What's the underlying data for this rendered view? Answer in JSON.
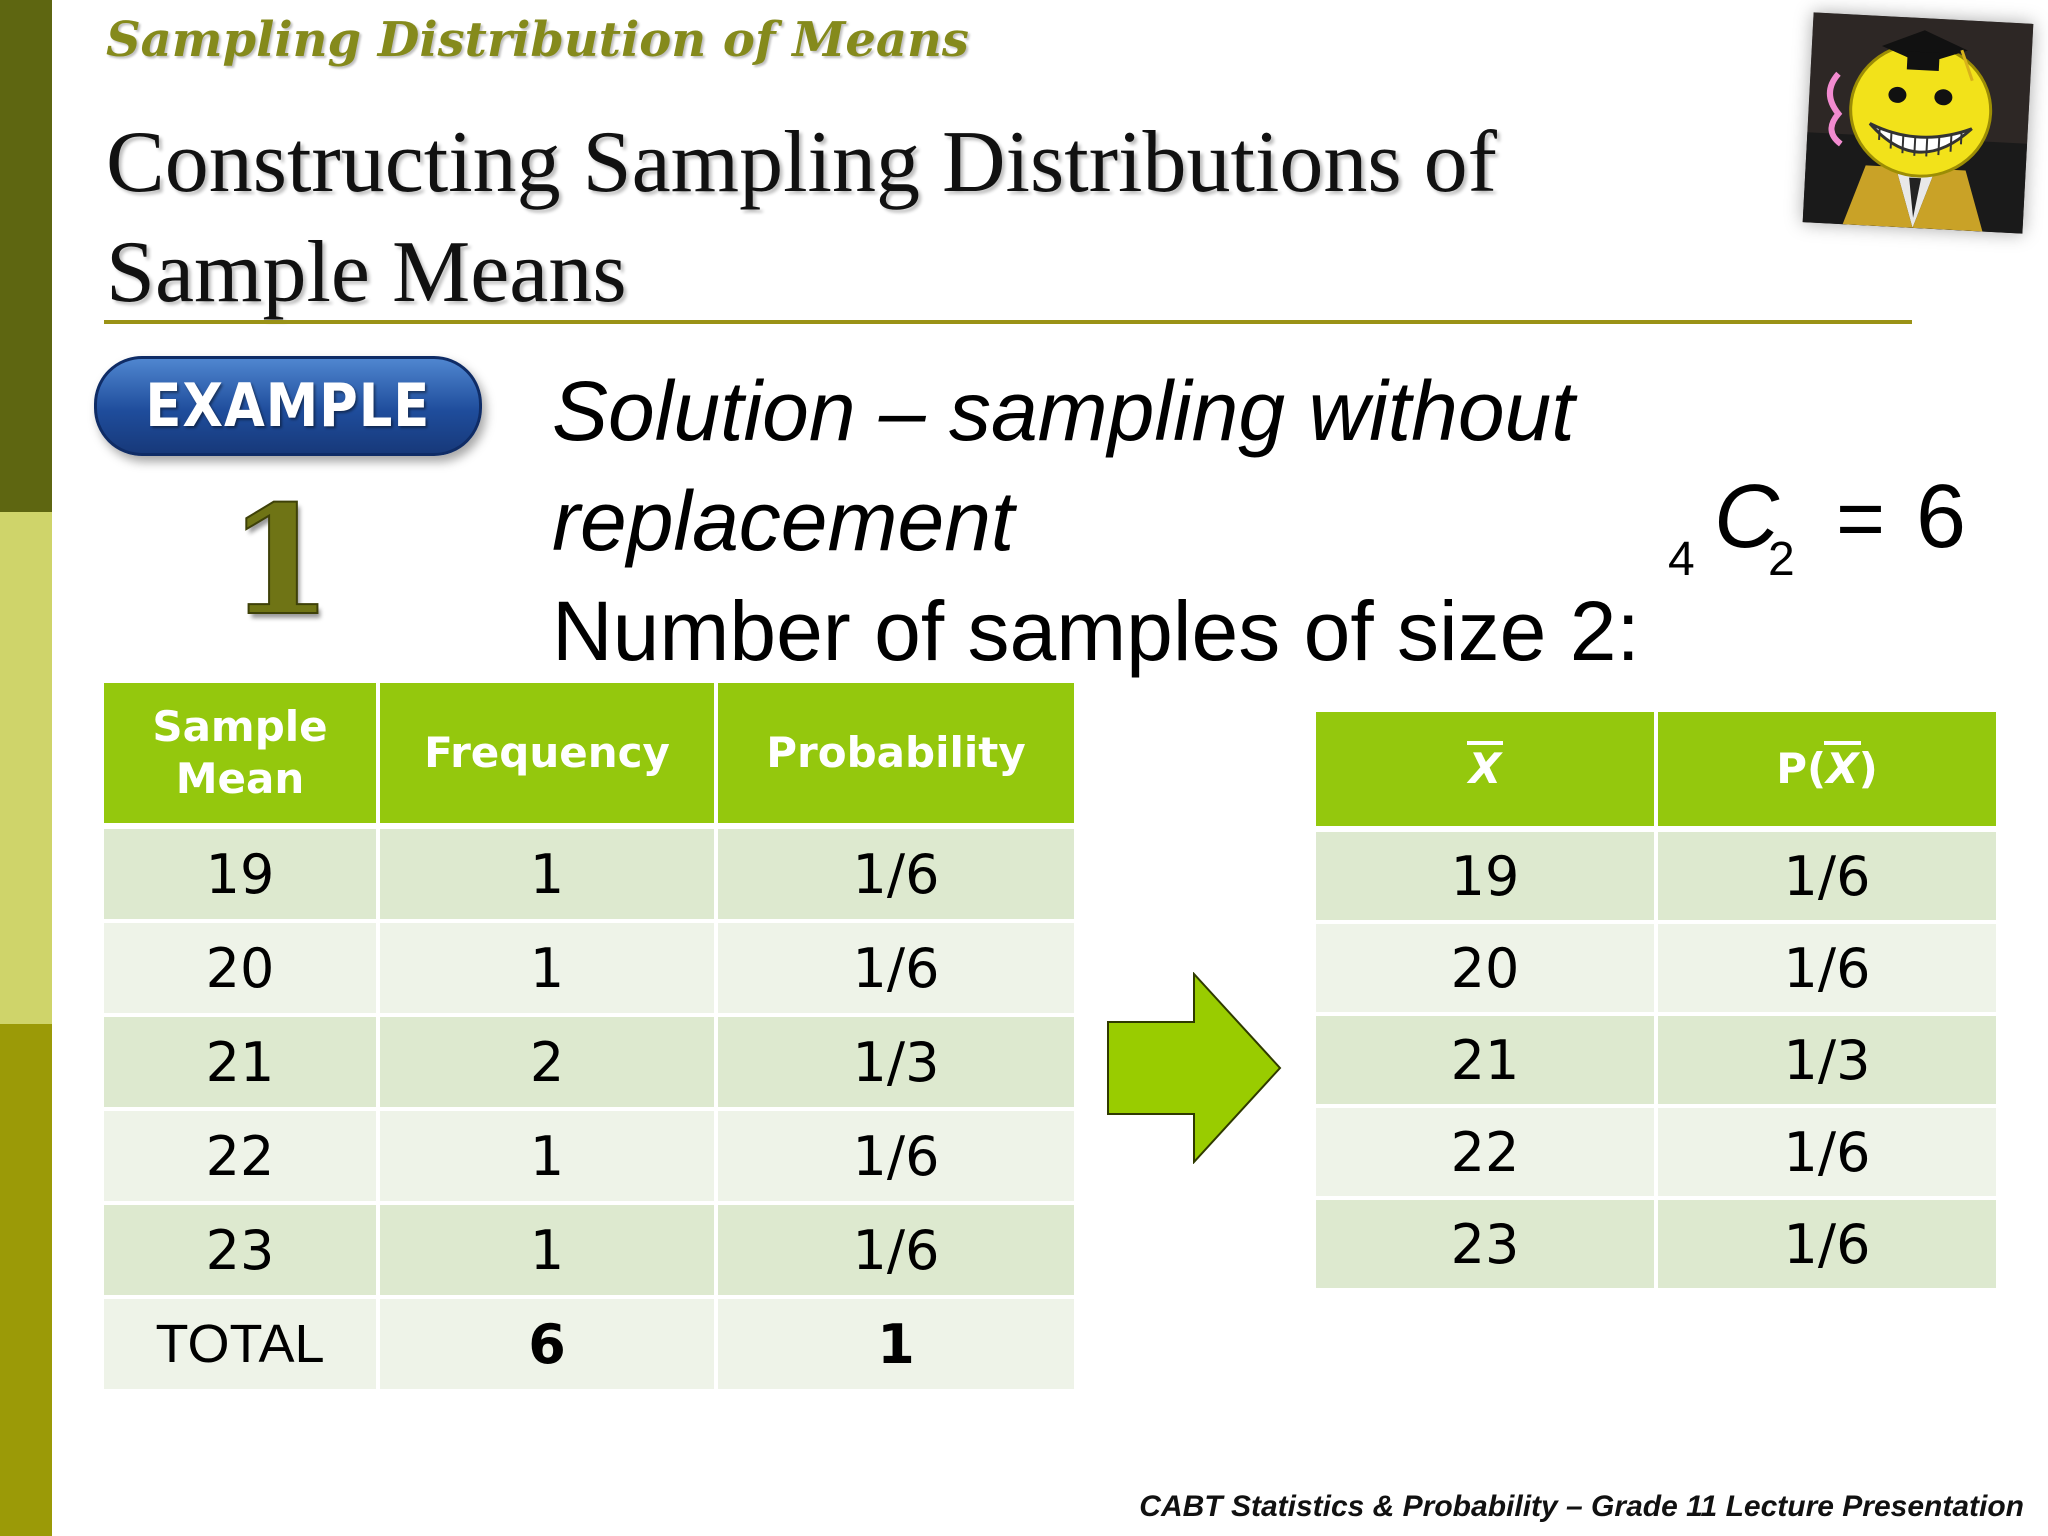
{
  "slide": {
    "subtitle": "Sampling Distribution of Means",
    "title_line1": "Constructing Sampling Distributions of",
    "title_line2": "Sample Means",
    "badge_label": "EXAMPLE",
    "example_number": "1",
    "solution_line1": "Solution – sampling without",
    "solution_line2": "replacement",
    "solution_line3": "Number of samples of size 2:",
    "formula": {
      "pre_sub": "4",
      "symbol": "C",
      "sub": "2",
      "equals": "=",
      "value": "6"
    },
    "footer": "CABT Statistics & Probability – Grade 11 Lecture Presentation"
  },
  "colors": {
    "header_green": "#94c80d",
    "row_odd": "#dde9cf",
    "row_even": "#eef3e8",
    "arrow_green": "#99cc00",
    "title_olive": "#858a1c",
    "sidebar": [
      "#5e6611",
      "#cfd46a",
      "#9b9a07"
    ]
  },
  "icons": {
    "badge": "example-badge",
    "arrow": "right-arrow-icon",
    "avatar": "koro-sensei-avatar"
  },
  "table1": {
    "headers": [
      "Sample\nMean",
      "Frequency",
      "Probability"
    ],
    "rows": [
      [
        "19",
        "1",
        "1/6"
      ],
      [
        "20",
        "1",
        "1/6"
      ],
      [
        "21",
        "2",
        "1/3"
      ],
      [
        "22",
        "1",
        "1/6"
      ],
      [
        "23",
        "1",
        "1/6"
      ]
    ],
    "total": [
      "TOTAL",
      "6",
      "1"
    ]
  },
  "table2": {
    "header_x": "X",
    "header_p_prefix": "P(",
    "header_p_x": "X",
    "header_p_suffix": ")",
    "rows": [
      [
        "19",
        "1/6"
      ],
      [
        "20",
        "1/6"
      ],
      [
        "21",
        "1/3"
      ],
      [
        "22",
        "1/6"
      ],
      [
        "23",
        "1/6"
      ]
    ]
  }
}
